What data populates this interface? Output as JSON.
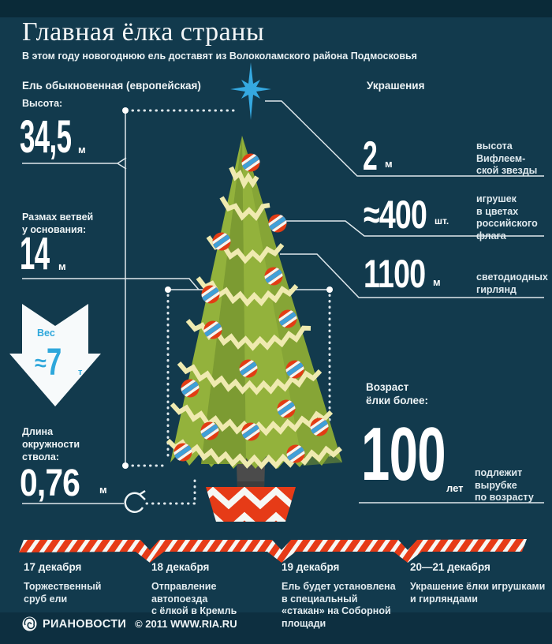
{
  "header": {
    "title": "Главная ёлка страны",
    "subtitle": "В этом году новогоднюю ель доставят из Волоколамского района Подмосковья"
  },
  "left": {
    "section_title": "Ель обыкновенная (европейская)",
    "height": {
      "label": "Высота:",
      "value": "34,5",
      "unit": "м"
    },
    "spread": {
      "label": "Размах ветвей\nу основания:",
      "value": "14",
      "unit": "м"
    },
    "weight": {
      "label": "Вес",
      "approx": "≈",
      "value": "7",
      "unit": "т"
    },
    "girth": {
      "label": "Длина\nокружности\nствола:",
      "value": "0,76",
      "unit": "м"
    }
  },
  "right": {
    "section_title": "Украшения",
    "star": {
      "value": "2",
      "unit": "м",
      "desc": "высота\nВифлеем-\nской звезды"
    },
    "toys": {
      "value": "≈400",
      "unit": "шт.",
      "desc": "игрушек\nв цветах\nроссийского\nфлага"
    },
    "garland": {
      "value": "1100",
      "unit": "м",
      "desc": "светодиодных\nгирлянд"
    },
    "age": {
      "label": "Возраст\nёлки более:",
      "value": "100",
      "unit": "лет",
      "desc": "подлежит\nвырубке\nпо возрасту"
    }
  },
  "timeline": [
    {
      "date": "17 декабря",
      "text": "Торжественный\nсруб ели"
    },
    {
      "date": "18 декабря",
      "text": "Отправление\nавтопоезда\nс ёлкой в Кремль"
    },
    {
      "date": "19 декабря",
      "text": "Ель будет установлена\nв специальный\n«стакан» на Соборной\nплощади"
    },
    {
      "date": "20—21 декабря",
      "text": "Украшение ёлки игрушками\nи гирляндами"
    }
  ],
  "footer": {
    "brand": "РИАНОВОСТИ",
    "copyright": "© 2011 WWW.RIA.RU"
  },
  "colors": {
    "background": "#123a4d",
    "accent_cyan": "#35a9e1",
    "ribbon_red": "#e63b17",
    "tree_green": "#93b23c",
    "tree_green_dark": "#7c9b32",
    "garland_yellow": "#efeab0",
    "text_white": "#ffffff"
  }
}
